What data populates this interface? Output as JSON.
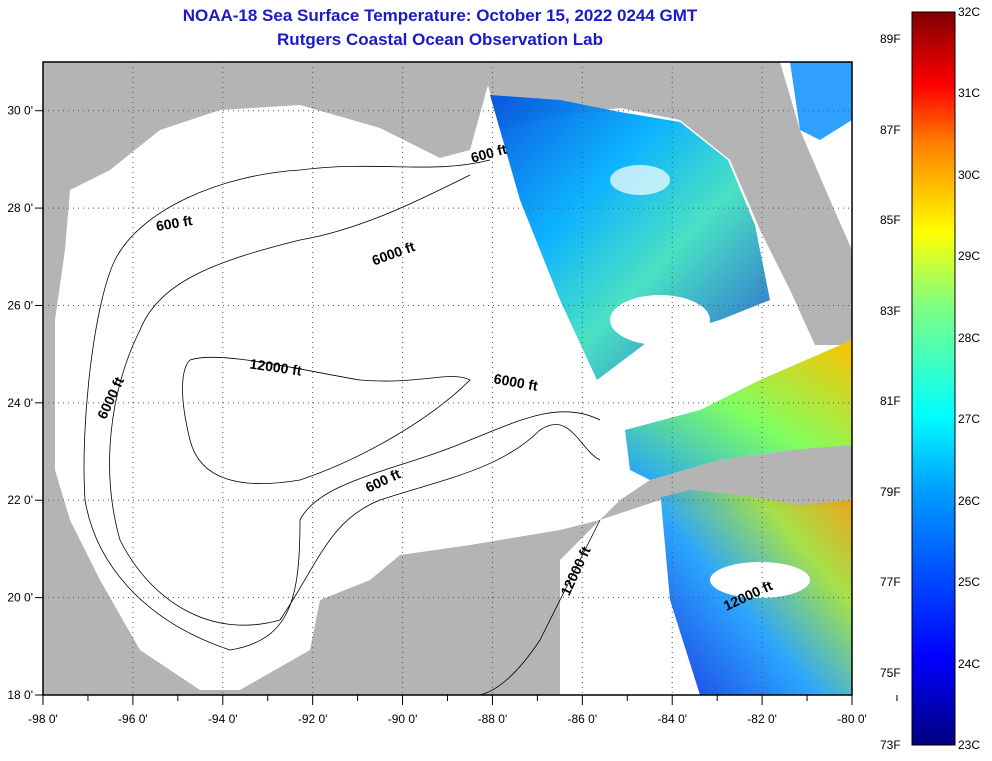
{
  "header": {
    "title": "NOAA-18 Sea Surface Temperature:  October 15, 2022 0244 GMT",
    "subtitle": "Rutgers Coastal Ocean Observation Lab"
  },
  "map": {
    "lon_range": [
      -98,
      -80
    ],
    "lat_range": [
      18,
      31
    ],
    "lon_ticks": [
      "-98 0'",
      "-96 0'",
      "-94 0'",
      "-92 0'",
      "-90 0'",
      "-88 0'",
      "-86 0'",
      "-84 0'",
      "-82 0'",
      "-80 0'"
    ],
    "lat_ticks": [
      "18 0'",
      "20 0'",
      "22 0'",
      "24 0'",
      "26 0'",
      "28 0'",
      "30 0'"
    ],
    "contour_labels": [
      "600 ft",
      "600 ft",
      "6000 ft",
      "12000 ft",
      "6000 ft",
      "6000 ft",
      "600 ft",
      "12000 ft",
      "12000 ft"
    ],
    "colors": {
      "land": "#b4b4b4",
      "sea": "#ffffff"
    }
  },
  "colorbar": {
    "fahrenheit": [
      "89F",
      "87F",
      "85F",
      "83F",
      "81F",
      "79F",
      "77F",
      "75F",
      "73F"
    ],
    "celsius": [
      "32C",
      "31C",
      "30C",
      "29C",
      "28C",
      "27C",
      "26C",
      "25C",
      "24C",
      "23C"
    ],
    "range_c": [
      23,
      32
    ]
  }
}
